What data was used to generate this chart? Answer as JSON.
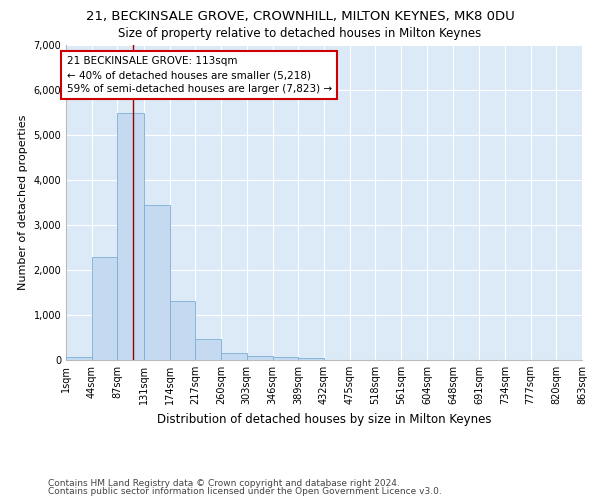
{
  "title_line1": "21, BECKINSALE GROVE, CROWNHILL, MILTON KEYNES, MK8 0DU",
  "title_line2": "Size of property relative to detached houses in Milton Keynes",
  "xlabel": "Distribution of detached houses by size in Milton Keynes",
  "ylabel": "Number of detached properties",
  "footnote1": "Contains HM Land Registry data © Crown copyright and database right 2024.",
  "footnote2": "Contains public sector information licensed under the Open Government Licence v3.0.",
  "bar_color": "#c5d9f0",
  "bar_edge_color": "#7bafd4",
  "background_color": "#dce9f7",
  "annotation_box_color": "#ffffff",
  "annotation_box_edge_color": "#cc0000",
  "vline_color": "#990000",
  "annotation_text_line1": "21 BECKINSALE GROVE: 113sqm",
  "annotation_text_line2": "← 40% of detached houses are smaller (5,218)",
  "annotation_text_line3": "59% of semi-detached houses are larger (7,823) →",
  "vline_x": 113,
  "bin_edges": [
    1,
    44,
    87,
    131,
    174,
    217,
    260,
    303,
    346,
    389,
    432,
    475,
    518,
    561,
    604,
    648,
    691,
    734,
    777,
    820,
    863
  ],
  "bar_heights": [
    75,
    2280,
    5480,
    3450,
    1320,
    460,
    160,
    95,
    70,
    45,
    0,
    0,
    0,
    0,
    0,
    0,
    0,
    0,
    0,
    0
  ],
  "ylim": [
    0,
    7000
  ],
  "yticks": [
    0,
    1000,
    2000,
    3000,
    4000,
    5000,
    6000,
    7000
  ],
  "grid_color": "#ffffff",
  "title1_fontsize": 9.5,
  "title2_fontsize": 8.5,
  "xlabel_fontsize": 8.5,
  "ylabel_fontsize": 8,
  "tick_fontsize": 7,
  "annot_fontsize": 7.5,
  "footnote_fontsize": 6.5
}
